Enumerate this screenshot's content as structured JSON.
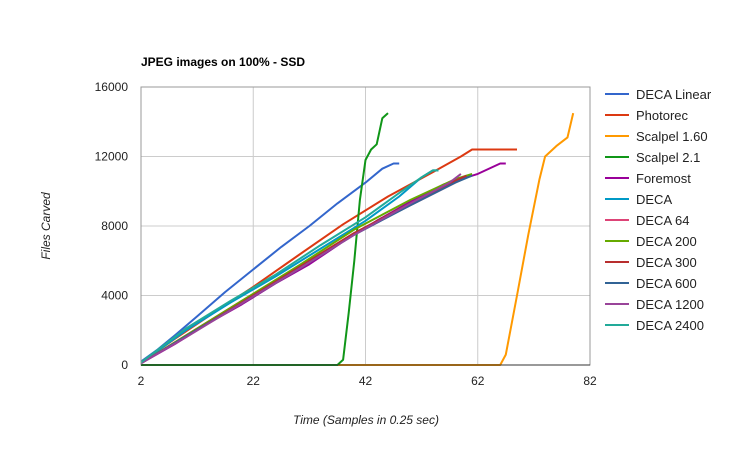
{
  "chart_data": {
    "type": "line",
    "title": "JPEG images on 100% - SSD",
    "xlabel": "Time (Samples in 0.25 sec)",
    "ylabel": "Files Carved",
    "xlim": [
      2,
      82
    ],
    "ylim": [
      0,
      16000
    ],
    "x_ticks": [
      2,
      22,
      42,
      62,
      82
    ],
    "y_ticks": [
      0,
      4000,
      8000,
      12000,
      16000
    ],
    "grid": true,
    "legend": "right",
    "series": [
      {
        "name": "DECA Linear",
        "color": "#3366cc",
        "points": [
          [
            2,
            200
          ],
          [
            5,
            900
          ],
          [
            8,
            1700
          ],
          [
            12,
            2800
          ],
          [
            17,
            4200
          ],
          [
            22,
            5500
          ],
          [
            27,
            6800
          ],
          [
            32,
            8000
          ],
          [
            37,
            9300
          ],
          [
            42,
            10500
          ],
          [
            45,
            11300
          ],
          [
            47,
            11600
          ],
          [
            48,
            11600
          ]
        ]
      },
      {
        "name": "Photorec",
        "color": "#dc3912",
        "points": [
          [
            2,
            150
          ],
          [
            8,
            1500
          ],
          [
            14,
            2800
          ],
          [
            22,
            4500
          ],
          [
            30,
            6300
          ],
          [
            38,
            8100
          ],
          [
            46,
            9700
          ],
          [
            54,
            11100
          ],
          [
            59,
            12000
          ],
          [
            61,
            12400
          ],
          [
            69,
            12400
          ]
        ]
      },
      {
        "name": "Scalpel 1.60",
        "color": "#ff9900",
        "points": [
          [
            2,
            0
          ],
          [
            66,
            0
          ],
          [
            67,
            600
          ],
          [
            69,
            4000
          ],
          [
            71,
            7500
          ],
          [
            73,
            10700
          ],
          [
            74,
            12000
          ],
          [
            76,
            12600
          ],
          [
            78,
            13100
          ],
          [
            79,
            14500
          ]
        ]
      },
      {
        "name": "Scalpel 2.1",
        "color": "#109618",
        "points": [
          [
            2,
            0
          ],
          [
            37,
            0
          ],
          [
            38,
            300
          ],
          [
            39,
            3000
          ],
          [
            40,
            6000
          ],
          [
            41,
            9500
          ],
          [
            42,
            11800
          ],
          [
            43,
            12400
          ],
          [
            44,
            12700
          ],
          [
            45,
            14200
          ],
          [
            46,
            14500
          ]
        ]
      },
      {
        "name": "Foremost",
        "color": "#990099",
        "points": [
          [
            2,
            100
          ],
          [
            8,
            1200
          ],
          [
            14,
            2400
          ],
          [
            20,
            3500
          ],
          [
            26,
            4700
          ],
          [
            32,
            5800
          ],
          [
            38,
            7100
          ],
          [
            44,
            8300
          ],
          [
            50,
            9400
          ],
          [
            56,
            10400
          ],
          [
            62,
            11000
          ],
          [
            66,
            11600
          ],
          [
            67,
            11600
          ]
        ]
      },
      {
        "name": "DECA",
        "color": "#0099c6",
        "points": [
          [
            2,
            120
          ],
          [
            10,
            2000
          ],
          [
            18,
            3600
          ],
          [
            26,
            5100
          ],
          [
            34,
            6700
          ],
          [
            42,
            8300
          ],
          [
            48,
            9700
          ],
          [
            52,
            10800
          ],
          [
            54,
            11200
          ],
          [
            55,
            11200
          ]
        ]
      },
      {
        "name": "DECA 64",
        "color": "#dd4477",
        "points": [
          [
            2,
            100
          ],
          [
            10,
            1700
          ],
          [
            20,
            3700
          ],
          [
            30,
            5600
          ],
          [
            40,
            7600
          ],
          [
            50,
            9200
          ],
          [
            58,
            10500
          ],
          [
            60,
            10800
          ]
        ]
      },
      {
        "name": "DECA 200",
        "color": "#66aa00",
        "points": [
          [
            2,
            100
          ],
          [
            10,
            1700
          ],
          [
            20,
            3700
          ],
          [
            30,
            5700
          ],
          [
            40,
            7800
          ],
          [
            50,
            9500
          ],
          [
            58,
            10700
          ],
          [
            61,
            11000
          ]
        ]
      },
      {
        "name": "DECA 300",
        "color": "#b82e2e",
        "points": [
          [
            2,
            100
          ],
          [
            10,
            1650
          ],
          [
            20,
            3600
          ],
          [
            30,
            5600
          ],
          [
            40,
            7600
          ],
          [
            50,
            9300
          ],
          [
            58,
            10600
          ],
          [
            60,
            10900
          ]
        ]
      },
      {
        "name": "DECA 600",
        "color": "#316395",
        "points": [
          [
            2,
            100
          ],
          [
            10,
            1650
          ],
          [
            20,
            3550
          ],
          [
            30,
            5500
          ],
          [
            40,
            7500
          ],
          [
            50,
            9200
          ],
          [
            58,
            10500
          ],
          [
            61,
            10900
          ]
        ]
      },
      {
        "name": "DECA 1200",
        "color": "#994499",
        "points": [
          [
            2,
            100
          ],
          [
            10,
            1600
          ],
          [
            20,
            3550
          ],
          [
            30,
            5500
          ],
          [
            40,
            7500
          ],
          [
            50,
            9300
          ],
          [
            57,
            10500
          ],
          [
            59,
            11000
          ]
        ]
      },
      {
        "name": "DECA 2400",
        "color": "#22aa99",
        "points": [
          [
            2,
            150
          ],
          [
            10,
            2100
          ],
          [
            18,
            3700
          ],
          [
            26,
            5200
          ],
          [
            34,
            6900
          ],
          [
            42,
            8500
          ],
          [
            48,
            9900
          ],
          [
            52,
            10800
          ],
          [
            54,
            11200
          ],
          [
            55,
            11200
          ]
        ]
      }
    ]
  }
}
